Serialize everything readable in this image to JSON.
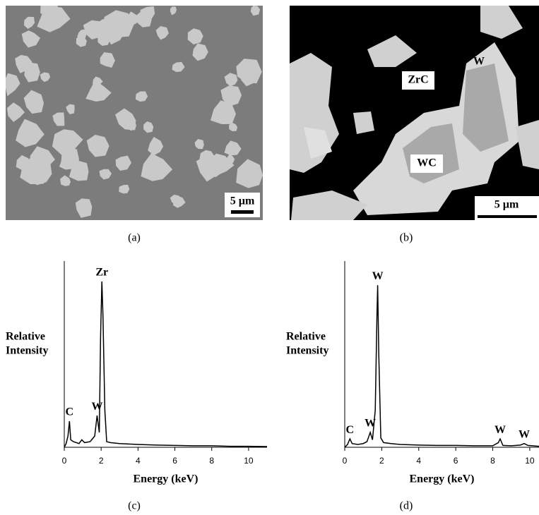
{
  "panels": [
    {
      "label": "(a)",
      "scale_bar": "5 µm"
    },
    {
      "label": "(b)",
      "scale_bar": "5 µm",
      "annotations": [
        "ZrC",
        "W",
        "WC"
      ]
    }
  ],
  "chart_data": [
    {
      "type": "line",
      "label": "(c)",
      "x_label": "Energy (keV)",
      "y_label": [
        "Relative",
        "Intensity"
      ],
      "xlim": [
        0,
        11
      ],
      "xticks": [
        0,
        2,
        4,
        6,
        8,
        10
      ],
      "ylim": [
        0,
        100
      ],
      "color": "#000000",
      "x": [
        0,
        0.1,
        0.2,
        0.28,
        0.35,
        0.5,
        0.8,
        0.95,
        1.1,
        1.4,
        1.65,
        1.78,
        1.9,
        1.97,
        2.04,
        2.1,
        2.2,
        2.3,
        2.5,
        3,
        4,
        5,
        6,
        7,
        8,
        9,
        10,
        11
      ],
      "values": [
        0,
        2,
        6,
        14,
        4,
        3,
        2,
        4,
        2.5,
        3,
        6,
        17,
        8,
        60,
        89,
        70,
        20,
        3,
        2.5,
        2,
        1.5,
        1.2,
        1,
        0.8,
        0.8,
        0.5,
        0.5,
        0.4
      ],
      "annotations": [
        {
          "text": "C",
          "x": 0.28
        },
        {
          "text": "W",
          "x": 1.78
        },
        {
          "text": "Zr",
          "x": 2.04
        }
      ]
    },
    {
      "type": "line",
      "label": "(d)",
      "x_label": "Energy (keV)",
      "y_label": [
        "Relative",
        "Intensity"
      ],
      "xlim": [
        0,
        10.5
      ],
      "xticks": [
        0,
        2,
        4,
        6,
        8,
        10
      ],
      "ylim": [
        0,
        100
      ],
      "color": "#000000",
      "x": [
        0,
        0.15,
        0.28,
        0.4,
        0.7,
        1.0,
        1.2,
        1.38,
        1.5,
        1.65,
        1.74,
        1.78,
        1.84,
        1.95,
        2.1,
        2.5,
        3,
        4,
        5,
        6,
        7,
        8,
        8.3,
        8.4,
        8.55,
        9,
        9.5,
        9.7,
        9.9,
        10.5
      ],
      "values": [
        0,
        1.5,
        4.5,
        2,
        1.5,
        2,
        3,
        8,
        4,
        20,
        70,
        87,
        50,
        5,
        2.5,
        2,
        1.5,
        1.2,
        1,
        1,
        0.8,
        0.8,
        2.5,
        4.5,
        1,
        0.8,
        1.2,
        2,
        1,
        0.5
      ],
      "annotations": [
        {
          "text": "C",
          "x": 0.28
        },
        {
          "text": "W",
          "x": 1.38
        },
        {
          "text": "W",
          "x": 1.78
        },
        {
          "text": "W",
          "x": 8.4
        },
        {
          "text": "W",
          "x": 9.7
        }
      ]
    }
  ]
}
